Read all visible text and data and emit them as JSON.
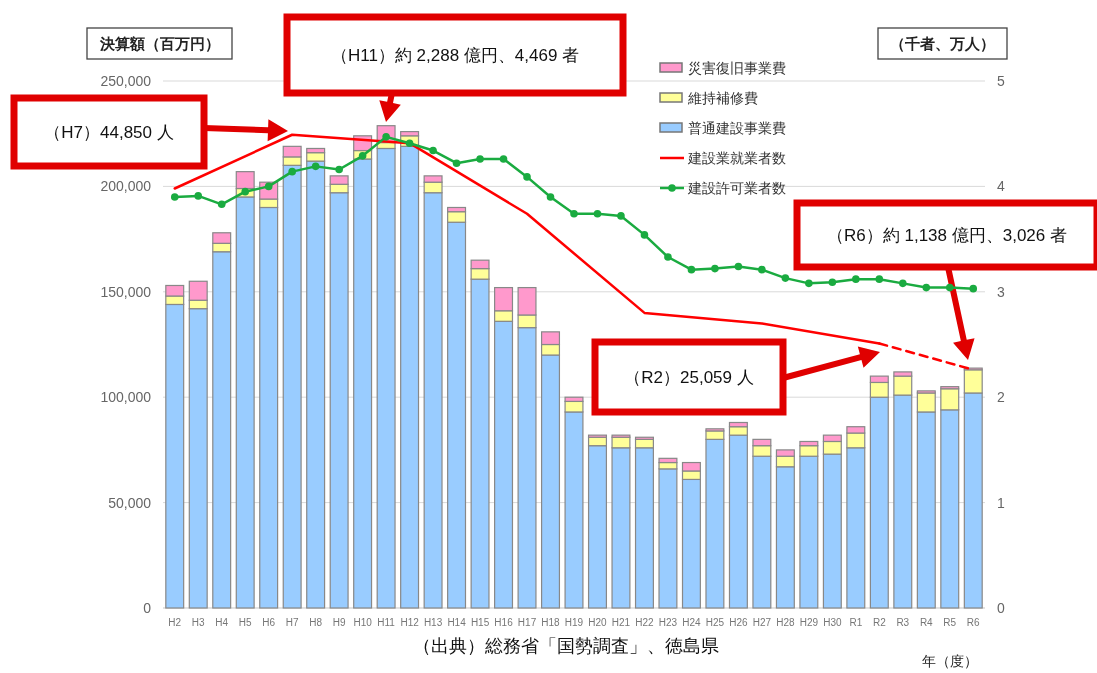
{
  "chart_data": {
    "type": "bar",
    "stacked": true,
    "ylabel": "決算額（百万円）",
    "y2label": "（千者、万人）",
    "xlabel": "年（度）",
    "categories": [
      "H2",
      "H3",
      "H4",
      "H5",
      "H6",
      "H7",
      "H8",
      "H9",
      "H10",
      "H11",
      "H12",
      "H13",
      "H14",
      "H15",
      "H16",
      "H17",
      "H18",
      "H19",
      "H20",
      "H21",
      "H22",
      "H23",
      "H24",
      "H25",
      "H26",
      "H27",
      "H28",
      "H29",
      "H30",
      "R1",
      "R2",
      "R3",
      "R4",
      "R5",
      "R6"
    ],
    "series": [
      {
        "name": "普通建設事業費",
        "color": "#99ccff",
        "values": [
          144000,
          142000,
          169000,
          195000,
          190000,
          210000,
          212000,
          197000,
          213000,
          218000,
          219000,
          197000,
          183000,
          156000,
          136000,
          133000,
          120000,
          93000,
          77000,
          76000,
          76000,
          66000,
          61000,
          80000,
          82000,
          72000,
          67000,
          72000,
          73000,
          76000,
          100000,
          101000,
          93000,
          94000,
          102000
        ]
      },
      {
        "name": "維持補修費",
        "color": "#ffff99",
        "values": [
          4000,
          4000,
          4000,
          4000,
          4000,
          4000,
          4000,
          4000,
          4000,
          2800,
          5000,
          5000,
          5000,
          5000,
          5000,
          6000,
          5000,
          5000,
          4000,
          5000,
          4000,
          3000,
          4000,
          4000,
          4000,
          5000,
          5000,
          5000,
          6000,
          7000,
          7000,
          9000,
          9000,
          10000,
          11000
        ]
      },
      {
        "name": "災害復旧事業費",
        "color": "#ff99cc",
        "values": [
          5000,
          9000,
          5000,
          8000,
          8000,
          5000,
          2000,
          4000,
          7000,
          8000,
          2000,
          3000,
          2000,
          4000,
          11000,
          13000,
          6000,
          2000,
          1000,
          1000,
          1000,
          2000,
          4000,
          1000,
          2000,
          3000,
          3000,
          2000,
          3000,
          3000,
          3000,
          2000,
          1000,
          1000,
          800
        ]
      },
      {
        "name": "建設業就業者数",
        "type": "line",
        "axis": "y2",
        "color": "#ff0000",
        "marker": "none",
        "line_style": "solid",
        "values": [
          3.98,
          null,
          null,
          null,
          null,
          4.49,
          null,
          null,
          null,
          null,
          4.41,
          null,
          null,
          null,
          null,
          3.74,
          null,
          null,
          null,
          null,
          2.8,
          null,
          null,
          null,
          null,
          2.7,
          null,
          null,
          null,
          null,
          2.51,
          null,
          null,
          null,
          null
        ]
      },
      {
        "type": "line",
        "axis": "y2",
        "color": "#ff0000",
        "marker": "none",
        "line_style": "dashed",
        "values": [
          null,
          null,
          null,
          null,
          null,
          null,
          null,
          null,
          null,
          null,
          null,
          null,
          null,
          null,
          null,
          null,
          null,
          null,
          null,
          null,
          null,
          null,
          null,
          null,
          null,
          null,
          null,
          null,
          null,
          null,
          2.51,
          null,
          null,
          null,
          2.26
        ]
      },
      {
        "name": "建設許可業者数",
        "type": "line",
        "axis": "y2",
        "color": "#1aab40",
        "marker": "circle",
        "line_style": "solid",
        "values": [
          3.9,
          3.91,
          3.83,
          3.95,
          4.0,
          4.14,
          4.19,
          4.16,
          4.29,
          4.47,
          4.41,
          4.34,
          4.22,
          4.26,
          4.26,
          4.09,
          3.9,
          3.74,
          3.74,
          3.72,
          3.54,
          3.33,
          3.21,
          3.22,
          3.24,
          3.21,
          3.13,
          3.08,
          3.09,
          3.12,
          3.12,
          3.08,
          3.04,
          3.04,
          3.03
        ]
      }
    ],
    "ylim": [
      0,
      250000
    ],
    "yticks": [
      {
        "value": 0,
        "label": "0"
      },
      {
        "value": 50000,
        "label": "50,000"
      },
      {
        "value": 100000,
        "label": "100,000"
      },
      {
        "value": 150000,
        "label": "150,000"
      },
      {
        "value": 200000,
        "label": "200,000"
      },
      {
        "value": 250000,
        "label": "250,000"
      }
    ],
    "y2lim": [
      0,
      5
    ],
    "y2ticks": [
      0,
      1,
      2,
      3,
      4,
      5
    ],
    "grid": "y",
    "legend": "top right",
    "annotations": [
      "（H11）約 2,288 億円、4,469 者",
      "（H7）44,850 人",
      "（R6）約 1,138 億円、3,026 者",
      "（R2）25,059 人",
      "（出典）総務省「国勢調査」、徳島県"
    ]
  }
}
